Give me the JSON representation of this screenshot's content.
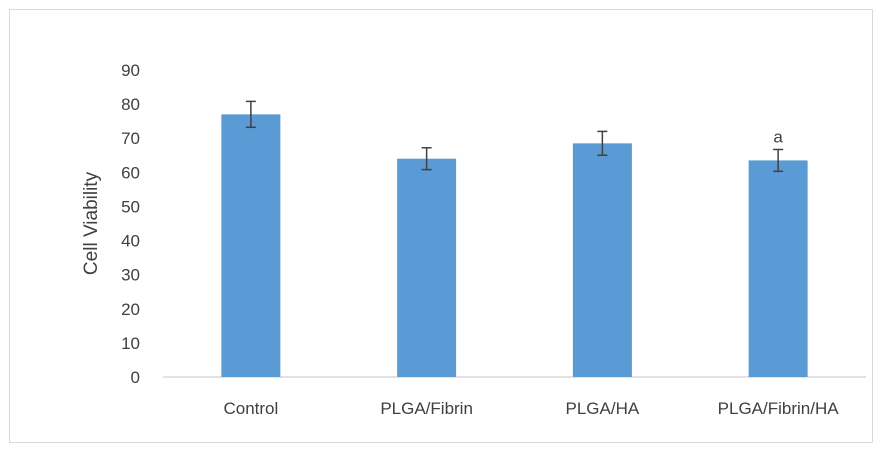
{
  "chart_data": {
    "type": "bar",
    "title": "",
    "xlabel": "",
    "ylabel": "Cell Viability",
    "categories": [
      "Control",
      "PLGA/Fibrin",
      "PLGA/HA",
      "PLGA/Fibrin/HA"
    ],
    "values": [
      77,
      64,
      68.5,
      63.5
    ],
    "error": [
      3.8,
      3.2,
      3.5,
      3.2
    ],
    "annotations": [
      "",
      "",
      "",
      "a"
    ],
    "ylim": [
      0,
      90
    ],
    "yticks": [
      0,
      10,
      20,
      30,
      40,
      50,
      60,
      70,
      80,
      90
    ],
    "grid": false,
    "legend": "none",
    "colors": {
      "bar": "#5b9bd5",
      "error_bar": "#404040",
      "axis": "#d9d9d9",
      "text": "#404040"
    }
  }
}
